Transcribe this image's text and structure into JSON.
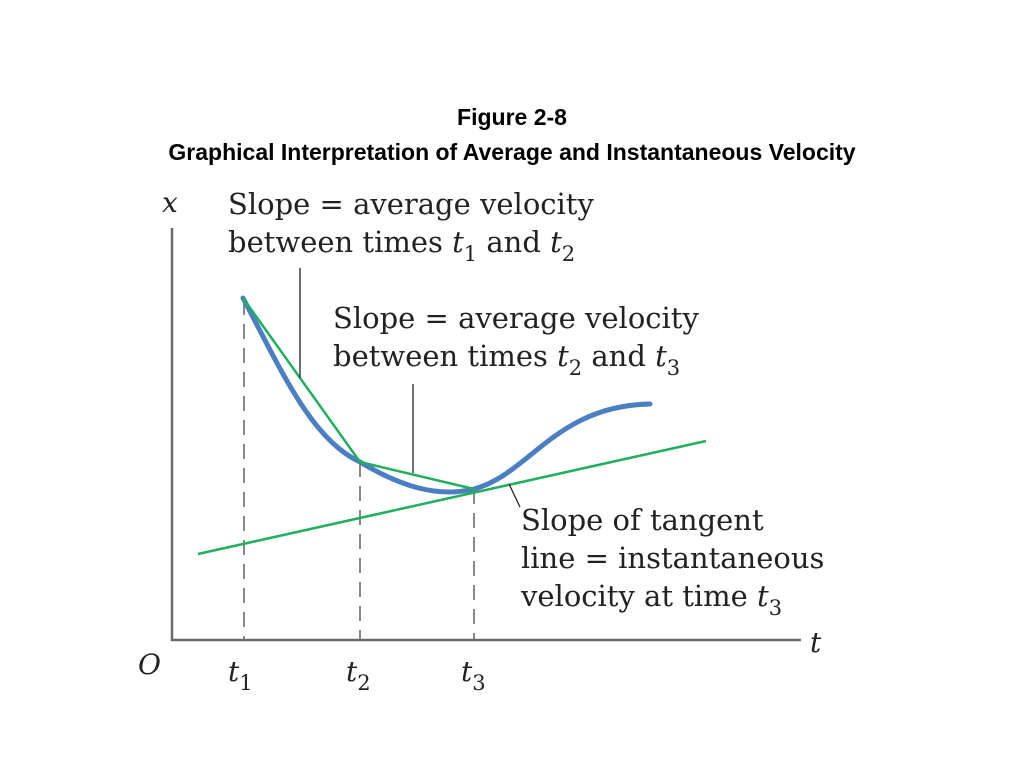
{
  "slide": {
    "title": "Figure 2-8",
    "subtitle": "Graphical Interpretation of Average and Instantaneous Velocity"
  },
  "axes": {
    "y_label": "x",
    "x_label": "t",
    "origin_label": "O",
    "ticks": [
      {
        "base": "t",
        "sub": "1"
      },
      {
        "base": "t",
        "sub": "2"
      },
      {
        "base": "t",
        "sub": "3"
      }
    ]
  },
  "annotations": {
    "chord_1_2": {
      "line1": "Slope  = average velocity",
      "line2_text": "between times ",
      "line2_t_a": "t",
      "line2_sub_a": "1",
      "line2_and": " and ",
      "line2_t_b": "t",
      "line2_sub_b": "2"
    },
    "chord_2_3": {
      "line1": "Slope  = average velocity",
      "line2_text": "between times ",
      "line2_t_a": "t",
      "line2_sub_a": "2",
      "line2_and": " and ",
      "line2_t_b": "t",
      "line2_sub_b": "3"
    },
    "tangent": {
      "line1": "Slope of tangent",
      "line2": "line = instantaneous",
      "line3_text": "velocity at time ",
      "line3_t": "t",
      "line3_sub": "3"
    }
  },
  "colors": {
    "curve": "#4a7fc1",
    "secant_and_tangent": "#1faf5f",
    "axes": "#6b6b6b",
    "text": "#222222"
  }
}
